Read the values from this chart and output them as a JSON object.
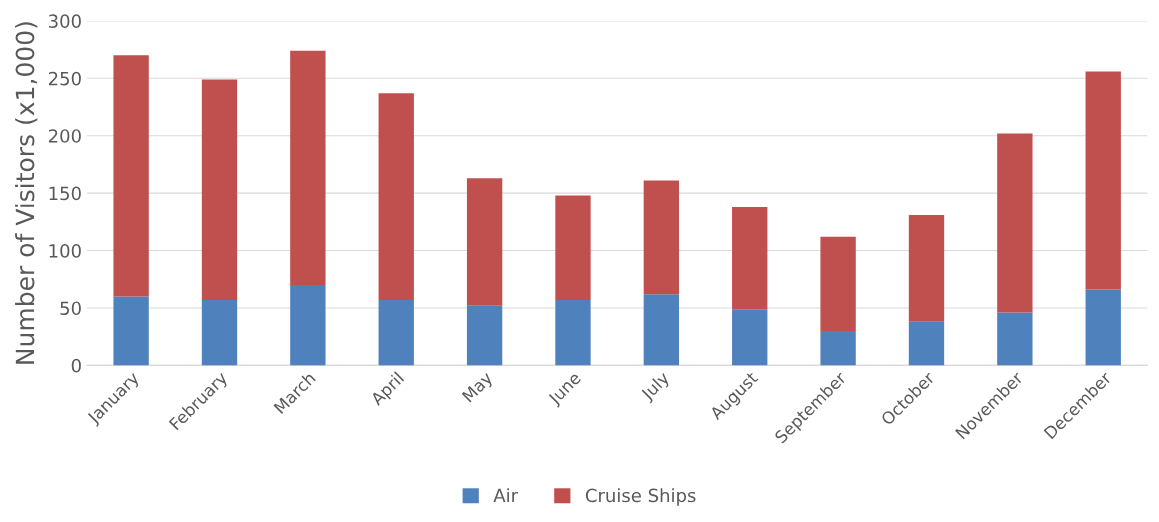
{
  "chart_data": {
    "type": "bar",
    "stacked": true,
    "ylabel": "Number of Visitors (x1,000)",
    "categories": [
      "January",
      "February",
      "March",
      "April",
      "May",
      "June",
      "July",
      "August",
      "September",
      "October",
      "November",
      "December"
    ],
    "series": [
      {
        "name": "Air",
        "color": "#4f81bd",
        "values": [
          60,
          57,
          70,
          57,
          52,
          57,
          62,
          49,
          30,
          38,
          46,
          66
        ]
      },
      {
        "name": "Cruise Ships",
        "color": "#c0504d",
        "values": [
          210,
          192,
          204,
          180,
          111,
          91,
          99,
          89,
          82,
          93,
          156,
          190
        ]
      }
    ],
    "ylim": [
      0,
      300
    ],
    "yticks": [
      0,
      50,
      100,
      150,
      200,
      250,
      300
    ],
    "grid": "y",
    "legend": "bottom"
  }
}
